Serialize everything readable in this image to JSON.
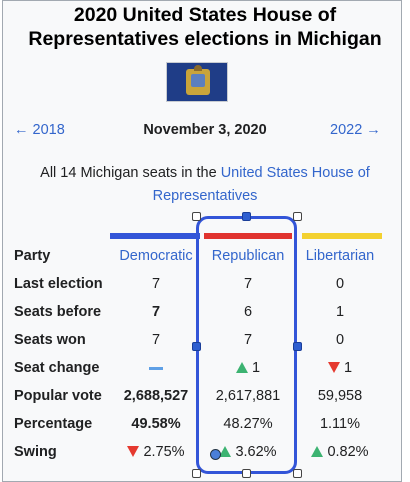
{
  "title_line1": "2020 United States House of",
  "title_line2": "Representatives elections in Michigan",
  "nav": {
    "prev": "← 2018",
    "date": "November 3, 2020",
    "next": "2022 →"
  },
  "caption": {
    "prefix": "All 14 Michigan seats in the ",
    "link_line1": "United States House of",
    "link_line2": "Representatives"
  },
  "colors": {
    "democratic": "#3355d8",
    "republican": "#e0332f",
    "libertarian": "#f3d12f",
    "selection": "#3355d8"
  },
  "parties": {
    "label": "Party",
    "democratic": "Democratic",
    "republican": "Republican",
    "libertarian": "Libertarian"
  },
  "rows": {
    "last_election": {
      "label": "Last election",
      "dem": "7",
      "rep": "7",
      "lib": "0"
    },
    "seats_before": {
      "label": "Seats before",
      "dem": "7",
      "rep": "6",
      "lib": "1"
    },
    "seats_won": {
      "label": "Seats won",
      "dem": "7",
      "rep": "7",
      "lib": "0"
    },
    "seat_change": {
      "label": "Seat change",
      "dem": "",
      "rep": "1",
      "lib": "1"
    },
    "popular_vote": {
      "label": "Popular vote",
      "dem": "2,688,527",
      "rep": "2,617,881",
      "lib": "59,958"
    },
    "percentage": {
      "label": "Percentage",
      "dem": "49.58%",
      "rep": "48.27%",
      "lib": "1.11%"
    },
    "swing": {
      "label": "Swing",
      "dem": "2.75%",
      "rep": "3.62%",
      "lib": "0.82%"
    }
  },
  "icons": {
    "flag": "michigan-flag-icon",
    "up": "triangle-up-icon",
    "down": "triangle-down-icon",
    "no_change": "dash-icon"
  }
}
